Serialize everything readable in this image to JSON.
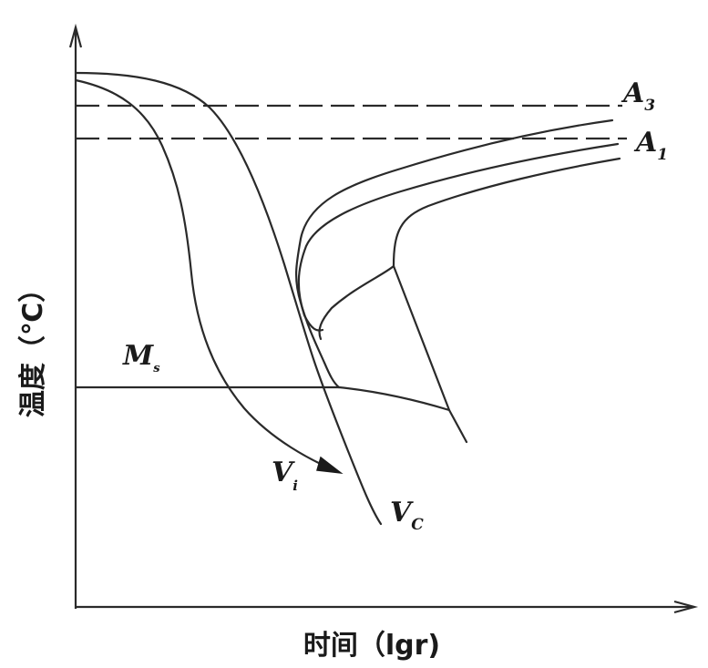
{
  "axes": {
    "y_label": "温度（℃）",
    "x_label": "时间（lgr)"
  },
  "lines": {
    "a3": {
      "main": "A",
      "sub": "3"
    },
    "a1": {
      "main": "A",
      "sub": "1"
    },
    "ms": {
      "main": "M",
      "sub": "s"
    }
  },
  "curves": {
    "vi": {
      "main": "V",
      "sub": "i"
    },
    "vc": {
      "main": "V",
      "sub": "C"
    }
  }
}
